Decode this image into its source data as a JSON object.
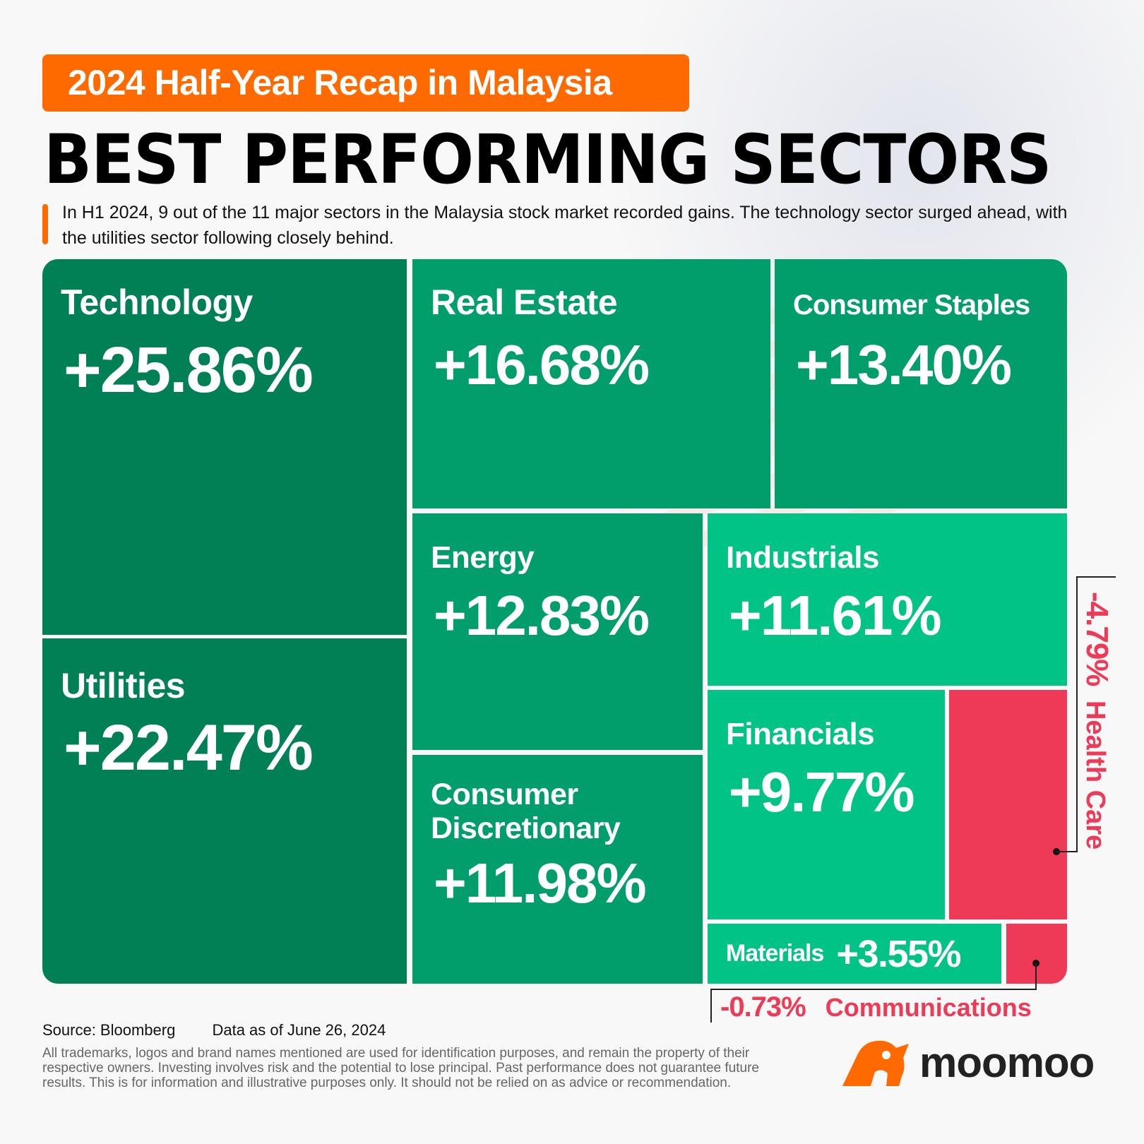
{
  "header": {
    "banner": "2024 Half-Year Recap in Malaysia",
    "title": "BEST PERFORMING SECTORS",
    "intro": "In H1 2024, 9 out of the 11 major sectors in the Malaysia stock market recorded gains. The technology sector surged ahead, with the utilities sector following closely behind."
  },
  "chart_data": {
    "type": "treemap",
    "title": "BEST PERFORMING SECTORS",
    "items": [
      {
        "name": "Technology",
        "value": "+25.86%",
        "change": 25.86
      },
      {
        "name": "Utilities",
        "value": "+22.47%",
        "change": 22.47
      },
      {
        "name": "Real Estate",
        "value": "+16.68%",
        "change": 16.68
      },
      {
        "name": "Consumer Staples",
        "value": "+13.40%",
        "change": 13.4
      },
      {
        "name": "Energy",
        "value": "+12.83%",
        "change": 12.83
      },
      {
        "name": "Consumer Discretionary",
        "value": "+11.98%",
        "change": 11.98
      },
      {
        "name": "Industrials",
        "value": "+11.61%",
        "change": 11.61
      },
      {
        "name": "Financials",
        "value": "+9.77%",
        "change": 9.77
      },
      {
        "name": "Materials",
        "value": "+3.55%",
        "change": 3.55
      },
      {
        "name": "Health Care",
        "value": "-4.79%",
        "change": -4.79
      },
      {
        "name": "Communications",
        "value": "-0.73%",
        "change": -0.73
      }
    ],
    "colors": {
      "dark_green": "#018055",
      "mid_green": "#019d6a",
      "bright_green": "#02c386",
      "red": "#ee3a56"
    }
  },
  "footer": {
    "source": "Source: Bloomberg",
    "date": "Data as of June 26, 2024",
    "disclaimer": "All trademarks, logos and brand names mentioned are used for identification purposes, and remain the property of their respective owners. Investing involves risk and the potential to lose principal. Past performance does not guarantee future results. This is for information and illustrative purposes only. It should not be relied on as advice or recommendation.",
    "brand": "moomoo"
  }
}
